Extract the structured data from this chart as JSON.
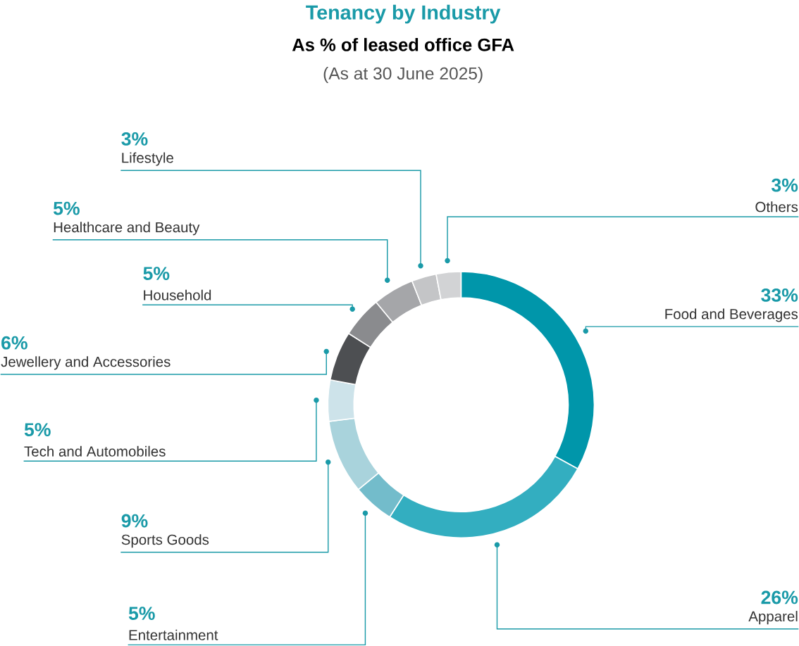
{
  "chart_data": {
    "type": "donut",
    "title": "Tenancy by Industry",
    "subtitle": "As % of leased office GFA",
    "annotations": [
      "(As at 30 June 2025)"
    ],
    "categories": [
      "Food and Beverages",
      "Apparel",
      "Entertainment",
      "Sports Goods",
      "Tech and Automobiles",
      "Jewellery and Accessories",
      "Household",
      "Healthcare and Beauty",
      "Lifestyle",
      "Others"
    ],
    "values": [
      33,
      26,
      5,
      9,
      5,
      6,
      5,
      5,
      3,
      3
    ],
    "colors": [
      "#0096aa",
      "#33aec0",
      "#73bccb",
      "#a9d3dc",
      "#cde3ea",
      "#4d4f52",
      "#8a8b8e",
      "#a5a6a9",
      "#c4c5c7",
      "#d2d3d5"
    ],
    "value_labels": [
      "33%",
      "26%",
      "5%",
      "9%",
      "5%",
      "6%",
      "5%",
      "5%",
      "3%",
      "3%"
    ]
  }
}
